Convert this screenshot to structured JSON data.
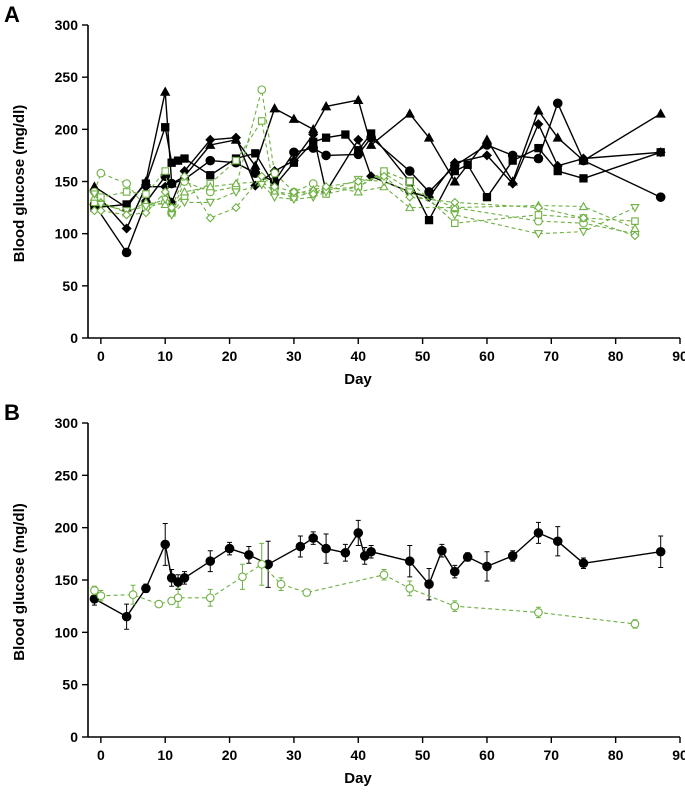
{
  "colors": {
    "treated": "#6fb043",
    "control": "#000000"
  },
  "chart_data": [
    {
      "panel": "A",
      "type": "line",
      "xlabel": "Day",
      "ylabel": "Blood glucose (mg/dl)",
      "xlim": [
        -2,
        90
      ],
      "ylim": [
        0,
        300
      ],
      "xticks": [
        0,
        10,
        20,
        30,
        40,
        50,
        60,
        70,
        80,
        90
      ],
      "yticks": [
        0,
        50,
        100,
        150,
        200,
        250,
        300
      ],
      "series": [
        {
          "name": "control-circle",
          "group": "control",
          "marker": "circle",
          "x": [
            -1,
            4,
            7,
            10,
            11,
            13,
            17,
            21,
            24,
            27,
            30,
            33,
            35,
            40,
            42,
            48,
            51,
            55,
            60,
            64,
            68,
            71,
            75,
            87
          ],
          "y": [
            128,
            82,
            130,
            155,
            148,
            152,
            170,
            168,
            158,
            150,
            178,
            182,
            175,
            176,
            192,
            160,
            140,
            165,
            185,
            175,
            172,
            225,
            170,
            135
          ]
        },
        {
          "name": "control-square",
          "group": "control",
          "marker": "square",
          "x": [
            -1,
            4,
            7,
            10,
            11,
            12,
            13,
            17,
            21,
            24,
            27,
            30,
            33,
            35,
            38,
            40,
            42,
            48,
            51,
            55,
            57,
            60,
            64,
            68,
            71,
            75,
            87
          ],
          "y": [
            125,
            128,
            148,
            202,
            168,
            170,
            172,
            156,
            172,
            177,
            146,
            168,
            188,
            192,
            195,
            180,
            196,
            150,
            113,
            160,
            166,
            135,
            170,
            182,
            160,
            153,
            178
          ]
        },
        {
          "name": "control-triangle",
          "group": "control",
          "marker": "triangle",
          "x": [
            -1,
            4,
            7,
            10,
            11,
            13,
            17,
            21,
            24,
            27,
            30,
            33,
            35,
            40,
            42,
            48,
            51,
            55,
            60,
            64,
            68,
            71,
            75,
            87
          ],
          "y": [
            145,
            125,
            150,
            236,
            148,
            155,
            185,
            190,
            165,
            220,
            210,
            200,
            222,
            228,
            185,
            215,
            192,
            150,
            190,
            150,
            218,
            192,
            170,
            215
          ]
        },
        {
          "name": "control-diamond",
          "group": "control",
          "marker": "diamond",
          "x": [
            -1,
            4,
            7,
            10,
            11,
            13,
            17,
            21,
            24,
            27,
            30,
            33,
            35,
            40,
            42,
            48,
            51,
            55,
            60,
            64,
            68,
            71,
            75,
            87
          ],
          "y": [
            140,
            105,
            145,
            145,
            130,
            160,
            190,
            192,
            146,
            160,
            170,
            195,
            140,
            190,
            155,
            140,
            135,
            168,
            175,
            148,
            205,
            165,
            172,
            178
          ]
        },
        {
          "name": "treated-circle",
          "group": "treated",
          "marker": "circle",
          "x": [
            -1,
            0,
            4,
            7,
            10,
            11,
            13,
            17,
            21,
            25,
            27,
            30,
            33,
            35,
            40,
            44,
            48,
            55,
            68,
            75,
            83
          ],
          "y": [
            140,
            158,
            148,
            125,
            130,
            120,
            150,
            140,
            145,
            238,
            158,
            140,
            148,
            142,
            145,
            158,
            142,
            125,
            112,
            110,
            100
          ]
        },
        {
          "name": "treated-square",
          "group": "treated",
          "marker": "square",
          "x": [
            -1,
            0,
            4,
            7,
            10,
            11,
            13,
            17,
            21,
            25,
            27,
            30,
            33,
            35,
            40,
            44,
            48,
            55,
            68,
            75,
            83
          ],
          "y": [
            130,
            135,
            140,
            138,
            160,
            120,
            135,
            148,
            170,
            208,
            140,
            135,
            140,
            138,
            145,
            160,
            150,
            110,
            118,
            115,
            112
          ]
        },
        {
          "name": "treated-triangle",
          "group": "treated",
          "marker": "triangle",
          "x": [
            -1,
            0,
            4,
            7,
            10,
            11,
            13,
            17,
            21,
            25,
            27,
            30,
            33,
            35,
            40,
            44,
            48,
            55,
            68,
            75,
            83
          ],
          "y": [
            135,
            130,
            120,
            130,
            128,
            122,
            140,
            145,
            148,
            150,
            140,
            138,
            142,
            145,
            140,
            145,
            125,
            125,
            127,
            126,
            105
          ]
        },
        {
          "name": "treated-inverted-triangle",
          "group": "treated",
          "marker": "triangle-down",
          "x": [
            -1,
            0,
            4,
            7,
            10,
            11,
            13,
            17,
            21,
            25,
            27,
            30,
            33,
            35,
            40,
            44,
            48,
            55,
            68,
            75,
            83
          ],
          "y": [
            138,
            128,
            122,
            126,
            133,
            118,
            130,
            130,
            140,
            147,
            135,
            133,
            135,
            140,
            152,
            150,
            140,
            118,
            100,
            102,
            125
          ]
        },
        {
          "name": "treated-diamond",
          "group": "treated",
          "marker": "diamond",
          "x": [
            -1,
            0,
            4,
            7,
            10,
            11,
            13,
            17,
            21,
            25,
            27,
            30,
            33,
            35,
            40,
            44,
            48,
            55,
            68,
            75,
            83
          ],
          "y": [
            122,
            122,
            118,
            120,
            140,
            125,
            155,
            115,
            125,
            155,
            145,
            140,
            138,
            145,
            150,
            155,
            135,
            130,
            125,
            115,
            98
          ]
        }
      ]
    },
    {
      "panel": "B",
      "type": "line",
      "xlabel": "Day",
      "ylabel": "Blood glucose (mg/dl)",
      "xlim": [
        -2,
        90
      ],
      "ylim": [
        0,
        300
      ],
      "xticks": [
        0,
        10,
        20,
        30,
        40,
        50,
        60,
        70,
        80,
        90
      ],
      "yticks": [
        0,
        50,
        100,
        150,
        200,
        250,
        300
      ],
      "series": [
        {
          "name": "control-mean",
          "group": "control",
          "marker": "circle",
          "x": [
            -1,
            4,
            7,
            10,
            11,
            12,
            13,
            17,
            20,
            23,
            26,
            31,
            33,
            35,
            38,
            40,
            41,
            42,
            48,
            51,
            53,
            55,
            57,
            60,
            64,
            68,
            71,
            75,
            87
          ],
          "y": [
            132,
            115,
            142,
            184,
            152,
            148,
            152,
            168,
            180,
            174,
            165,
            182,
            190,
            180,
            176,
            195,
            173,
            177,
            168,
            146,
            178,
            158,
            172,
            163,
            173,
            195,
            187,
            166,
            177
          ],
          "err": [
            6,
            12,
            4,
            20,
            8,
            7,
            6,
            10,
            6,
            8,
            22,
            10,
            6,
            14,
            8,
            12,
            8,
            6,
            15,
            15,
            6,
            6,
            4,
            14,
            5,
            10,
            14,
            5,
            15
          ]
        },
        {
          "name": "treated-mean",
          "group": "treated",
          "marker": "circle-open",
          "x": [
            -1,
            0,
            5,
            9,
            11,
            12,
            17,
            22,
            25,
            28,
            32,
            44,
            48,
            55,
            68,
            83
          ],
          "y": [
            140,
            135,
            136,
            127,
            130,
            133,
            133,
            153,
            165,
            146,
            138,
            155,
            142,
            125,
            119,
            108
          ],
          "err": [
            4,
            5,
            9,
            3,
            3,
            9,
            8,
            12,
            20,
            6,
            3,
            5,
            7,
            5,
            5,
            4
          ]
        }
      ]
    }
  ]
}
